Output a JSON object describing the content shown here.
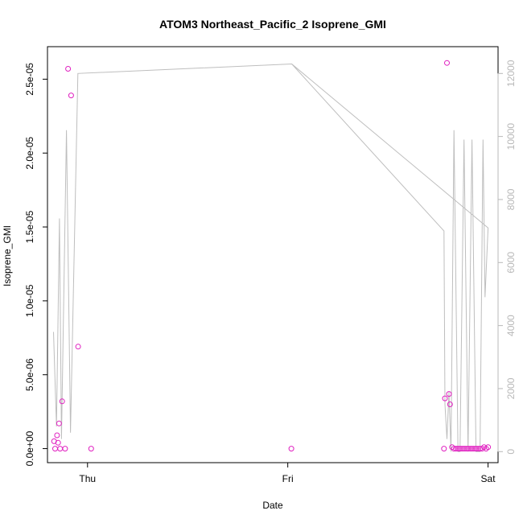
{
  "chart_data": {
    "type": "scatter",
    "title": "ATOM3 Northeast_Pacific_2 Isoprene_GMI",
    "xlabel": "Date",
    "ylabel": "Isoprene_GMI",
    "xlim": [
      -0.2,
      2.05
    ],
    "ylim": [
      -9.5e-07,
      2.72e-05
    ],
    "y2lim": [
      -350,
      12850
    ],
    "x_ticks": [
      {
        "value": 0,
        "label": "Thu"
      },
      {
        "value": 1,
        "label": "Fri"
      },
      {
        "value": 2,
        "label": "Sat"
      }
    ],
    "y_ticks": [
      {
        "value": 0,
        "label": "0.0e+00"
      },
      {
        "value": 5e-06,
        "label": "5.0e-06"
      },
      {
        "value": 1e-05,
        "label": "1.0e-05"
      },
      {
        "value": 1.5e-05,
        "label": "1.5e-05"
      },
      {
        "value": 2e-05,
        "label": "2.0e-05"
      },
      {
        "value": 2.5e-05,
        "label": "2.5e-05"
      }
    ],
    "y2_ticks": [
      {
        "value": 0,
        "label": "0"
      },
      {
        "value": 2000,
        "label": "2000"
      },
      {
        "value": 4000,
        "label": "4000"
      },
      {
        "value": 6000,
        "label": "6000"
      },
      {
        "value": 8000,
        "label": "8000"
      },
      {
        "value": 10000,
        "label": "10000"
      },
      {
        "value": 12000,
        "label": "12000"
      }
    ],
    "series": [
      {
        "axis": "left",
        "style": "points",
        "color": "#e020c0",
        "x": [
          -0.167,
          -0.162,
          -0.152,
          -0.147,
          -0.142,
          -0.137,
          -0.127,
          -0.112,
          -0.097,
          -0.082,
          -0.047,
          0.018,
          1.018,
          1.78,
          1.785,
          1.795,
          1.805,
          1.81,
          1.82,
          1.83,
          1.84,
          1.85,
          1.86,
          1.87,
          1.88,
          1.89,
          1.9,
          1.91,
          1.92,
          1.93,
          1.94,
          1.95,
          1.96,
          1.97,
          1.98,
          1.99,
          2.0
        ],
        "y": [
          5e-07,
          0,
          9e-07,
          4e-07,
          1.7e-06,
          0,
          3.2e-06,
          0,
          2.57e-05,
          2.39e-05,
          6.9e-06,
          0,
          0,
          0,
          3.4e-06,
          2.61e-05,
          3.7e-06,
          3e-06,
          1e-07,
          0,
          0,
          0,
          0,
          0,
          0,
          0,
          0,
          0,
          0,
          0,
          0,
          0,
          0,
          0,
          1e-07,
          0,
          1e-07
        ]
      },
      {
        "axis": "right",
        "style": "line",
        "color": "#bebebe",
        "x": [
          -0.17,
          -0.155,
          -0.14,
          -0.13,
          -0.105,
          -0.085,
          -0.048,
          1.02,
          1.78,
          1.785,
          1.795,
          1.805,
          1.815,
          1.83,
          1.85,
          1.86,
          1.88,
          1.9,
          1.92,
          1.94,
          1.96,
          1.975,
          1.985,
          2.0,
          1.02
        ],
        "y": [
          3800,
          800,
          7400,
          400,
          10200,
          600,
          12000,
          12300,
          7000,
          1500,
          400,
          1900,
          0,
          10200,
          0,
          0,
          9900,
          0,
          9900,
          0,
          0,
          9900,
          4900,
          7100,
          12300
        ]
      }
    ]
  }
}
